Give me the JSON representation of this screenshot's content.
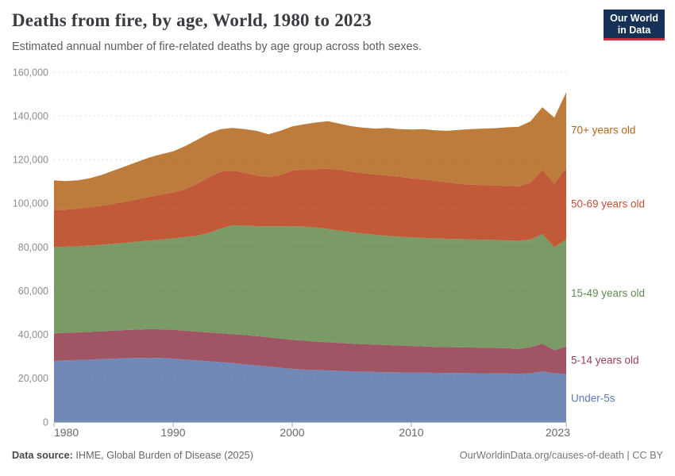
{
  "header": {
    "title": "Deaths from fire, by age, World, 1980 to 2023",
    "subtitle": "Estimated annual number of fire-related deaths by age group across both sexes.",
    "logo": {
      "line1": "Our World",
      "line2": "in Data",
      "bg_color": "#153256",
      "bar_color": "#d02e3f"
    }
  },
  "footer": {
    "source_label": "Data source:",
    "source_text": " IHME, Global Burden of Disease (2025)",
    "credit": "OurWorldinData.org/causes-of-death | CC BY"
  },
  "chart_data": {
    "type": "area",
    "stacked": true,
    "title": "Deaths from fire, by age, World, 1980 to 2023",
    "xlabel": "",
    "ylabel": "",
    "ylim": [
      0,
      160000
    ],
    "grid": "dashed-horizontal",
    "legend_position": "right-inline-labels",
    "x": [
      1980,
      1981,
      1982,
      1983,
      1984,
      1985,
      1986,
      1987,
      1988,
      1989,
      1990,
      1991,
      1992,
      1993,
      1994,
      1995,
      1996,
      1997,
      1998,
      1999,
      2000,
      2001,
      2002,
      2003,
      2004,
      2005,
      2006,
      2007,
      2008,
      2009,
      2010,
      2011,
      2012,
      2013,
      2014,
      2015,
      2016,
      2017,
      2018,
      2019,
      2020,
      2021,
      2022,
      2023
    ],
    "x_tick_labels": [
      "1980",
      "1990",
      "2000",
      "2010",
      "2023"
    ],
    "x_tick_years": [
      1980,
      1990,
      2000,
      2010,
      2023
    ],
    "y_ticks": [
      0,
      20000,
      40000,
      60000,
      80000,
      100000,
      120000,
      140000,
      160000
    ],
    "y_tick_labels": [
      "0",
      "20,000",
      "40,000",
      "60,000",
      "80,000",
      "100,000",
      "120,000",
      "140,000",
      "160,000"
    ],
    "series": [
      {
        "name": "Under-5s",
        "color": "#7289B7",
        "label_color": "#5b7cb6",
        "values": [
          28000,
          28200,
          28400,
          28600,
          28800,
          29000,
          29200,
          29300,
          29400,
          29300,
          29000,
          28600,
          28200,
          27800,
          27400,
          27000,
          26400,
          25900,
          25400,
          24800,
          24300,
          24000,
          23800,
          23600,
          23400,
          23200,
          23000,
          22900,
          22800,
          22700,
          22600,
          22550,
          22500,
          22450,
          22400,
          22350,
          22300,
          22250,
          22200,
          22100,
          22300,
          23100,
          22300,
          21900
        ]
      },
      {
        "name": "5-14 years old",
        "color": "#A05564",
        "label_color": "#953f52",
        "values": [
          12500,
          12600,
          12600,
          12700,
          12700,
          12800,
          12900,
          13000,
          13100,
          13100,
          13200,
          13200,
          13200,
          13200,
          13200,
          13200,
          13400,
          13400,
          13400,
          13400,
          13300,
          13200,
          13000,
          12900,
          12800,
          12700,
          12600,
          12500,
          12400,
          12300,
          12200,
          12050,
          11900,
          11850,
          11800,
          11750,
          11700,
          11650,
          11600,
          11400,
          12000,
          12800,
          10500,
          12700
        ]
      },
      {
        "name": "15-49 years old",
        "color": "#7A9A66",
        "label_color": "#628b4e",
        "values": [
          39500,
          39400,
          39400,
          39400,
          39600,
          39700,
          39900,
          40200,
          40500,
          41100,
          41800,
          42800,
          43800,
          45500,
          47900,
          49800,
          50000,
          50300,
          50700,
          51300,
          52000,
          52200,
          52200,
          51800,
          51300,
          50900,
          50600,
          50200,
          49900,
          49800,
          49700,
          49600,
          49600,
          49500,
          49500,
          49400,
          49400,
          49400,
          49300,
          49400,
          49200,
          50100,
          47200,
          48800
        ]
      },
      {
        "name": "50-69 years old",
        "color": "#C25A3A",
        "label_color": "#c44e35",
        "values": [
          17000,
          17000,
          17200,
          17500,
          17900,
          18300,
          18800,
          19400,
          20000,
          20500,
          21000,
          22000,
          23800,
          25500,
          26000,
          25000,
          24200,
          23200,
          22500,
          23500,
          25400,
          26100,
          26700,
          27600,
          27900,
          27700,
          27600,
          27600,
          27700,
          27500,
          27000,
          26800,
          26300,
          25800,
          25300,
          25100,
          25000,
          24900,
          24900,
          24900,
          26000,
          29500,
          29000,
          32900
        ]
      },
      {
        "name": "70+ years old",
        "color": "#BD7C3B",
        "label_color": "#b26818",
        "values": [
          13500,
          13000,
          13000,
          13300,
          14000,
          15200,
          16200,
          17100,
          18000,
          18500,
          18800,
          19600,
          20000,
          20000,
          19500,
          19500,
          20000,
          20400,
          19600,
          20200,
          20200,
          20700,
          21300,
          21700,
          21000,
          20800,
          20800,
          21000,
          21700,
          21700,
          22300,
          23000,
          23100,
          23600,
          24600,
          25400,
          25800,
          26200,
          26800,
          27200,
          28000,
          28500,
          30200,
          34500
        ]
      }
    ]
  }
}
